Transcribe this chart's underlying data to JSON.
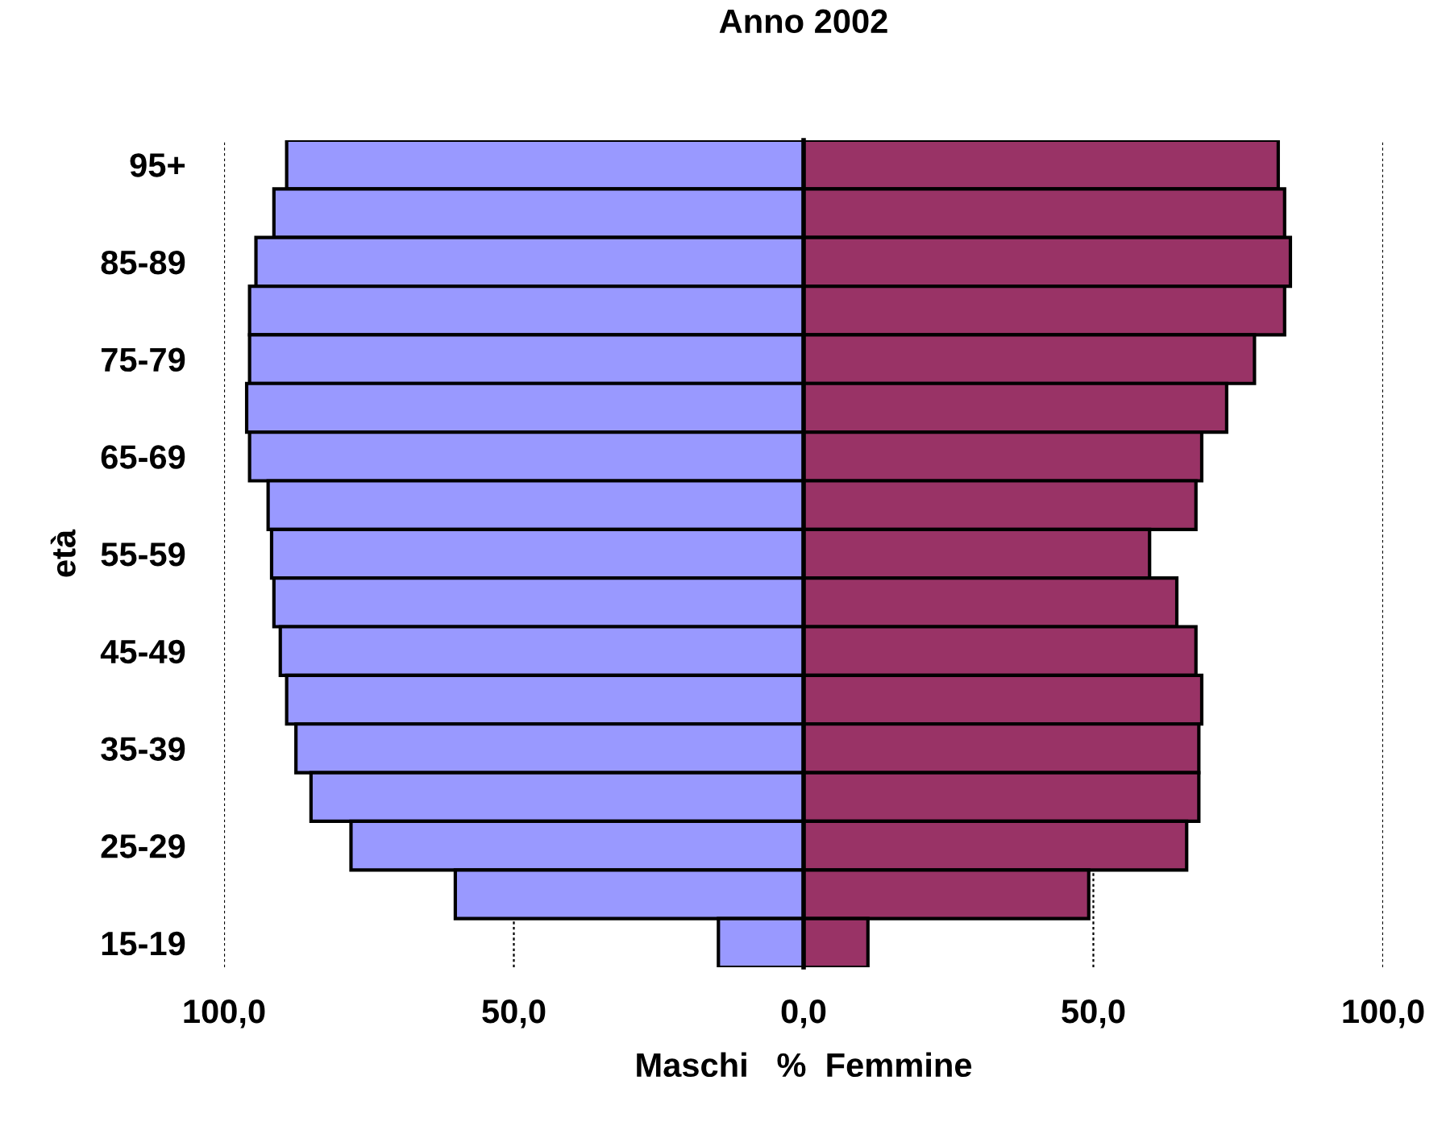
{
  "chart_data": {
    "type": "bar",
    "orientation": "horizontal",
    "stacked": true,
    "title": "Anno 2002",
    "xlabel": "Maschi   %  Femmine",
    "ylabel": "età",
    "categories": [
      "95+",
      null,
      "85-89",
      null,
      "75-79",
      null,
      "65-69",
      null,
      "55-59",
      null,
      "45-49",
      null,
      "35-39",
      null,
      "25-29",
      null,
      "15-19"
    ],
    "series": [
      {
        "color": "#9999ff",
        "values": [
          -89.2,
          -91.4,
          -94.5,
          -95.6,
          -95.6,
          -96.1,
          -95.6,
          -92.4,
          -91.8,
          -91.4,
          -90.3,
          -89.2,
          -87.6,
          -85.0,
          -78.1,
          -60.1,
          -14.7
        ]
      },
      {
        "color": "#993366",
        "values": [
          81.9,
          83.0,
          84.0,
          83.0,
          77.8,
          73.0,
          68.7,
          67.7,
          59.7,
          64.4,
          67.7,
          68.7,
          68.2,
          68.2,
          66.1,
          49.2,
          11.1
        ]
      }
    ],
    "xlim": [
      -100,
      100
    ],
    "xticks": [
      {
        "value": -100,
        "label": "100,0"
      },
      {
        "value": -50,
        "label": "50,0"
      },
      {
        "value": 0,
        "label": "0,0"
      },
      {
        "value": 50,
        "label": "50,0"
      },
      {
        "value": 100,
        "label": "100,0"
      }
    ],
    "grid": "x",
    "legend": false
  }
}
